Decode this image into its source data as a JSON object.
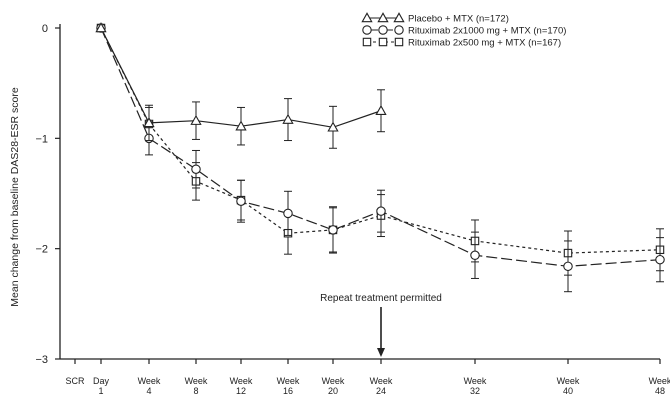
{
  "chart_data": {
    "type": "line",
    "title": "",
    "xlabel": "",
    "ylabel": "Mean change from baseline DAS28-ESR score",
    "ylim": [
      -3,
      0
    ],
    "yticks": [
      0,
      -1,
      -2,
      -3
    ],
    "ytick_labels": [
      "0",
      "−1",
      "−2",
      "−3"
    ],
    "categories": [
      [
        "SCR",
        ""
      ],
      [
        "Day",
        "1"
      ],
      [
        "Week",
        "4"
      ],
      [
        "Week",
        "8"
      ],
      [
        "Week",
        "12"
      ],
      [
        "Week",
        "16"
      ],
      [
        "Week",
        "20"
      ],
      [
        "Week",
        "24"
      ],
      [
        "Week",
        "32"
      ],
      [
        "Week",
        "40"
      ],
      [
        "Week",
        "48"
      ]
    ],
    "series": [
      {
        "name": "Placebo + MTX (n=172)",
        "marker": "triangle",
        "line_style": "solid",
        "x": [
          1,
          2,
          3,
          4,
          5,
          6,
          7
        ],
        "values": [
          0,
          -0.86,
          -0.84,
          -0.89,
          -0.83,
          -0.9,
          -0.75
        ],
        "error": [
          0,
          0.16,
          0.17,
          0.17,
          0.19,
          0.19,
          0.19
        ]
      },
      {
        "name": "Rituximab 2x1000 mg + MTX (n=170)",
        "marker": "circle",
        "line_style": "long-dash",
        "x": [
          1,
          2,
          3,
          4,
          5,
          6,
          7,
          8,
          9,
          10
        ],
        "values": [
          0,
          -1.0,
          -1.28,
          -1.57,
          -1.68,
          -1.83,
          -1.66,
          -2.06,
          -2.16,
          -2.1
        ],
        "error": [
          0,
          0.15,
          0.17,
          0.19,
          0.2,
          0.21,
          0.19,
          0.21,
          0.23,
          0.2
        ]
      },
      {
        "name": "Rituximab 2x500 mg + MTX (n=167)",
        "marker": "square",
        "line_style": "dotted",
        "x": [
          1,
          2,
          3,
          4,
          5,
          6,
          7,
          8,
          9,
          10
        ],
        "values": [
          0,
          -0.87,
          -1.39,
          -1.56,
          -1.86,
          -1.83,
          -1.7,
          -1.93,
          -2.04,
          -2.01
        ],
        "error": [
          0,
          0.15,
          0.17,
          0.18,
          0.19,
          0.2,
          0.19,
          0.19,
          0.2,
          0.19
        ]
      }
    ],
    "annotation": {
      "text": "Repeat treatment permitted",
      "x_category": 7
    },
    "legend_position": "top-right",
    "grid": false
  }
}
